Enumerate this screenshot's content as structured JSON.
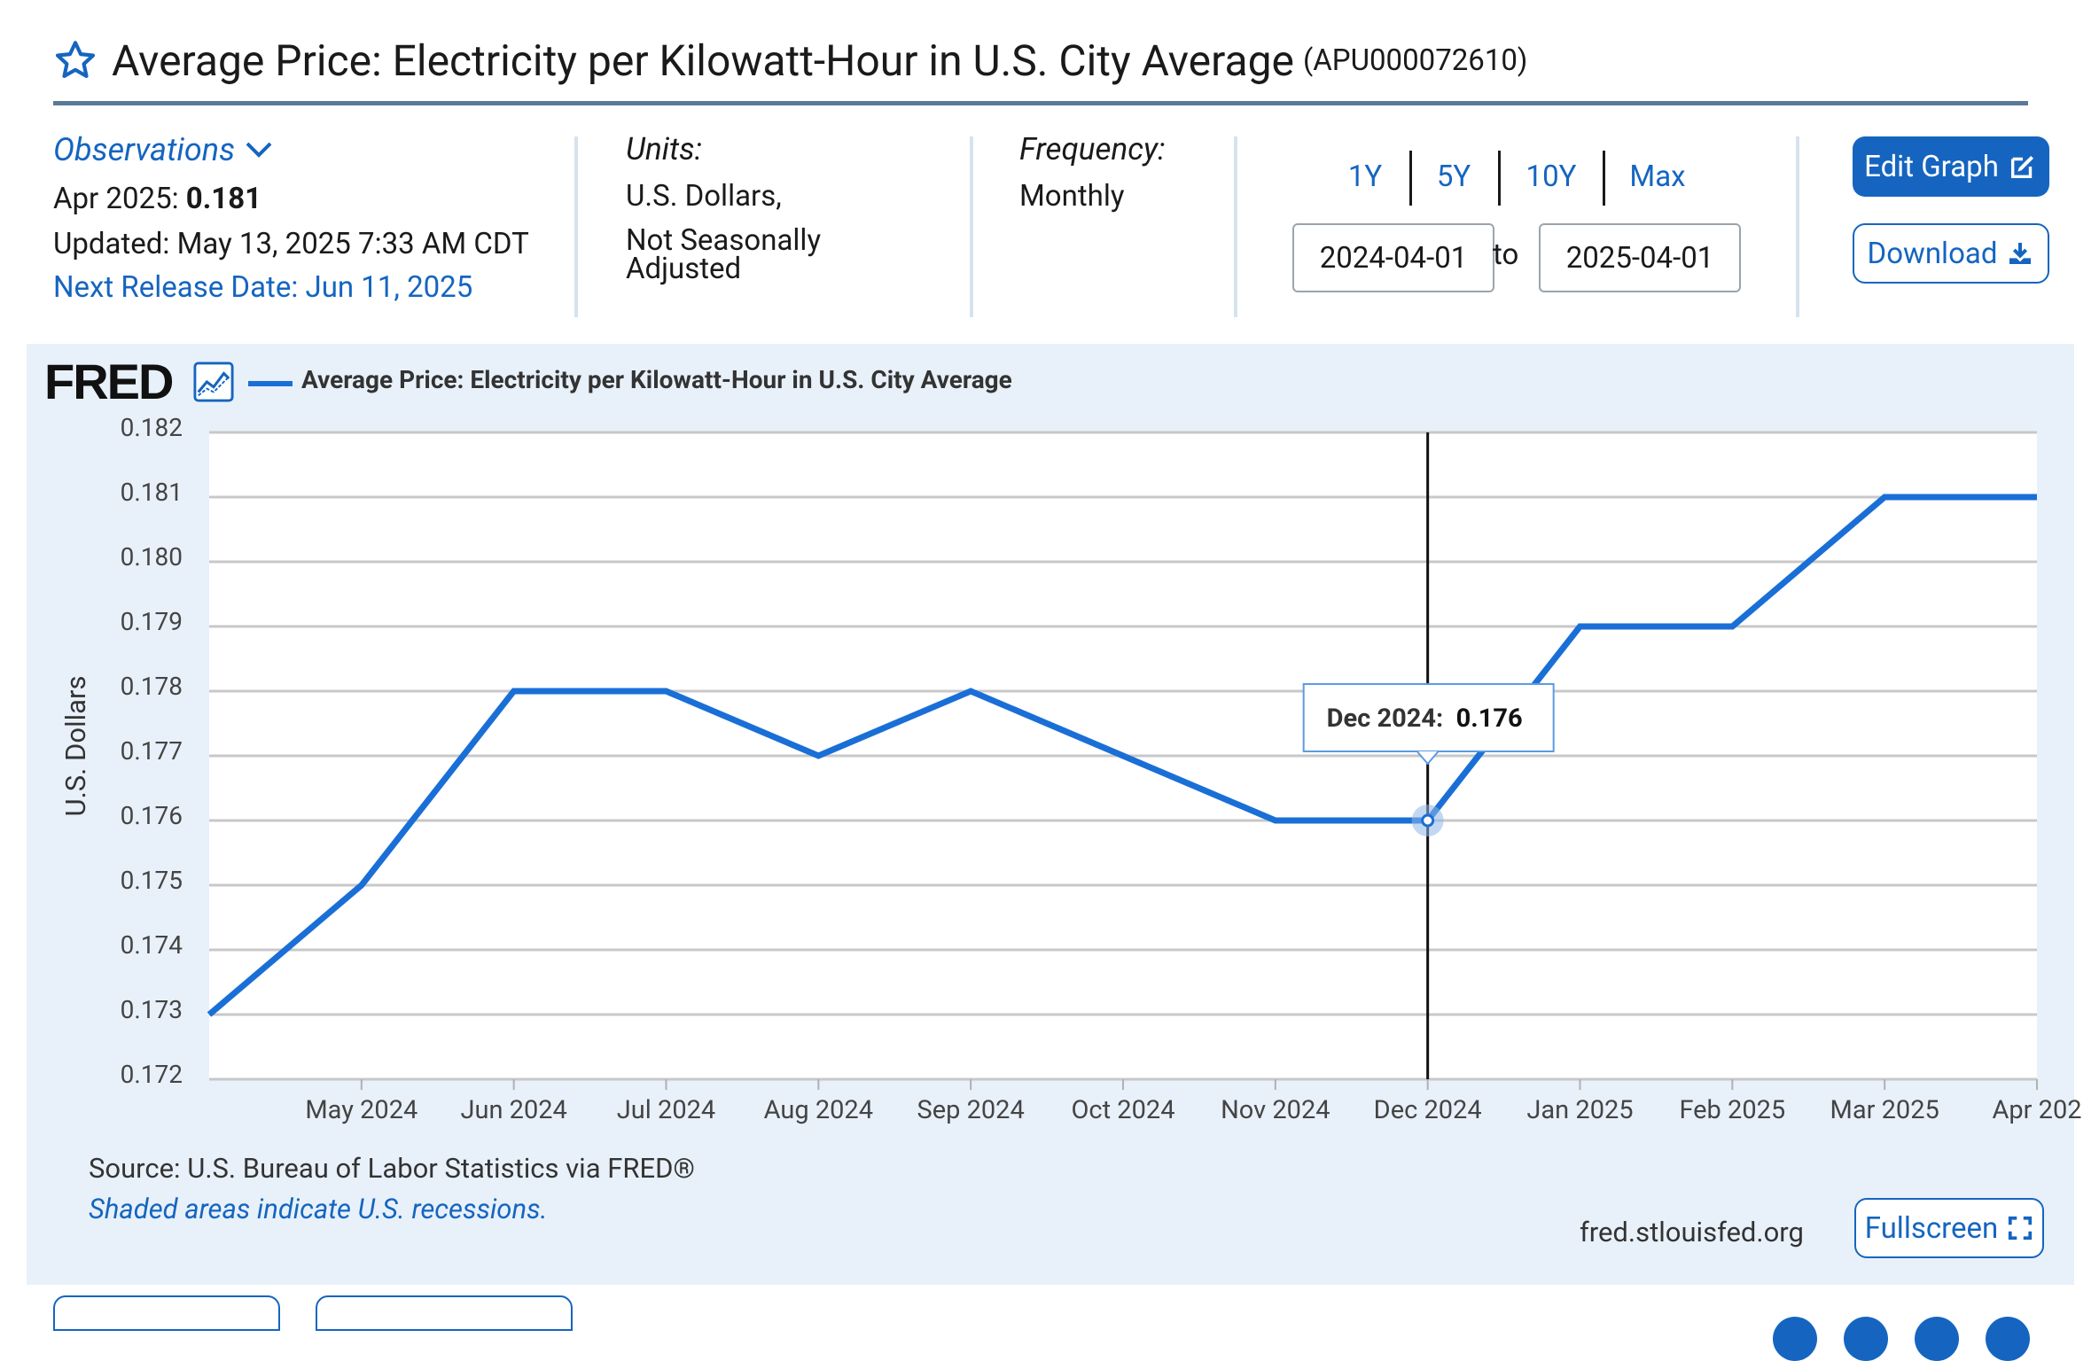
{
  "header": {
    "title": "Average Price: Electricity per Kilowatt-Hour in U.S. City Average",
    "series_id": "(APU000072610)"
  },
  "observations": {
    "label": "Observations",
    "latest_period": "Apr 2025:",
    "latest_value": "0.181",
    "updated": "Updated: May 13, 2025 7:33 AM CDT",
    "next_release": "Next Release Date: Jun 11, 2025"
  },
  "units": {
    "label": "Units:",
    "line1": "U.S. Dollars,",
    "line2": "Not Seasonally Adjusted"
  },
  "frequency": {
    "label": "Frequency:",
    "value": "Monthly"
  },
  "range": {
    "buttons": [
      "1Y",
      "5Y",
      "10Y",
      "Max"
    ],
    "start": "2024-04-01",
    "to": "to",
    "end": "2025-04-01"
  },
  "actions": {
    "edit_graph": "Edit Graph",
    "download": "Download",
    "fullscreen": "Fullscreen"
  },
  "chart_panel": {
    "logo": "FRED",
    "legend": "Average Price: Electricity per Kilowatt-Hour in U.S. City Average",
    "source": "Source: U.S. Bureau of Labor Statistics via FRED®",
    "recession_note": "Shaded areas indicate U.S. recessions.",
    "site": "fred.stlouisfed.org"
  },
  "chart_data": {
    "type": "line",
    "title": "",
    "xlabel": "",
    "ylabel": "U.S. Dollars",
    "x": [
      "Apr 2024",
      "May 2024",
      "Jun 2024",
      "Jul 2024",
      "Aug 2024",
      "Sep 2024",
      "Oct 2024",
      "Nov 2024",
      "Dec 2024",
      "Jan 2025",
      "Feb 2025",
      "Mar 2025",
      "Apr 2025"
    ],
    "x_tick_labels": [
      "May 2024",
      "Jun 2024",
      "Jul 2024",
      "Aug 2024",
      "Sep 2024",
      "Oct 2024",
      "Nov 2024",
      "Dec 2024",
      "Jan 2025",
      "Feb 2025",
      "Mar 2025",
      "Apr 202"
    ],
    "series": [
      {
        "name": "Average Price: Electricity per Kilowatt-Hour in U.S. City Average",
        "values": [
          0.173,
          0.175,
          0.178,
          0.178,
          0.177,
          0.178,
          0.177,
          0.176,
          0.176,
          0.179,
          0.179,
          0.181,
          0.181
        ]
      }
    ],
    "ylim": [
      0.172,
      0.182
    ],
    "y_ticks": [
      "0.172",
      "0.173",
      "0.174",
      "0.175",
      "0.176",
      "0.177",
      "0.178",
      "0.179",
      "0.180",
      "0.181",
      "0.182"
    ],
    "grid": true,
    "legend_position": "top-left",
    "line_color": "#1a6fd6",
    "tooltip": {
      "index": 8,
      "label": "Dec 2024:",
      "value": "0.176"
    }
  }
}
